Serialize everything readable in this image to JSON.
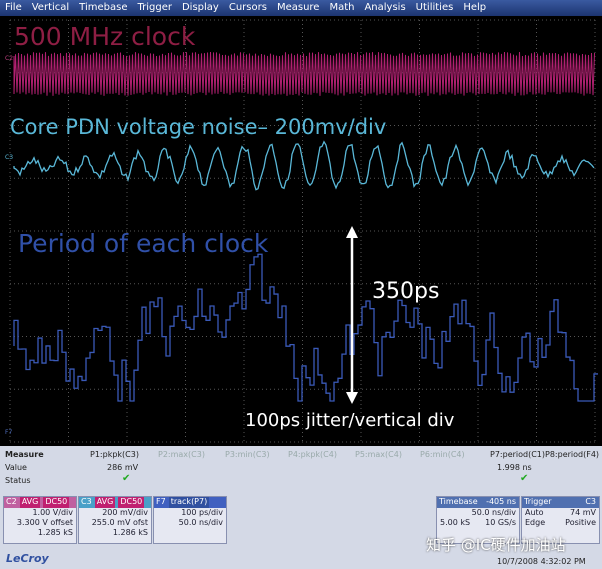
{
  "menu": [
    "File",
    "Vertical",
    "Timebase",
    "Trigger",
    "Display",
    "Cursors",
    "Measure",
    "Math",
    "Analysis",
    "Utilities",
    "Help"
  ],
  "annotations": {
    "clock": "500 MHz clock",
    "noise": "Core PDN voltage noise– 200mv/div",
    "period": "Period of each clock",
    "span": "350ps",
    "jitter": "100ps jitter/vertical div"
  },
  "traces": {
    "c2": "C2",
    "c3": "C3",
    "f7": "F7"
  },
  "measure": {
    "title": "Measure",
    "headers": [
      "P1:pkpk(C3)",
      "P2:max(C3)",
      "P3:min(C3)",
      "P4:pkpk(C4)",
      "P5:max(C4)",
      "P6:min(C4)",
      "P7:period(C1)",
      "P8:period(F4)"
    ],
    "value_label": "Value",
    "status_label": "Status",
    "p1_value": "286 mV",
    "p7_value": "1.998 ns"
  },
  "channels": [
    {
      "label": "C2",
      "tags": [
        "AVG",
        "DC50"
      ],
      "lines": [
        "1.00 V/div",
        "3.300 V offset",
        "1.285 kS"
      ]
    },
    {
      "label": "C3",
      "tags": [
        "AVG",
        "DC50"
      ],
      "lines": [
        "200 mV/div",
        "255.0 mV ofst",
        "1.286 kS"
      ]
    },
    {
      "label": "F7",
      "tags": [
        "track(P7)"
      ],
      "lines": [
        "100 ps/div",
        "50.0 ns/div"
      ]
    }
  ],
  "timebase": {
    "title": "Timebase",
    "value": "-405 ns",
    "div": "50.0 ns/div",
    "samples": "5.00 kS",
    "rate": "10 GS/s"
  },
  "trigger": {
    "title": "Trigger",
    "channel": "C3",
    "mode": "Auto",
    "level": "74 mV",
    "kind": "Edge",
    "slope": "Positive"
  },
  "brand": "LeCroy",
  "timestamp": "10/7/2008 4:32:02 PM",
  "watermark": "知乎 @IC硬件加油站"
}
